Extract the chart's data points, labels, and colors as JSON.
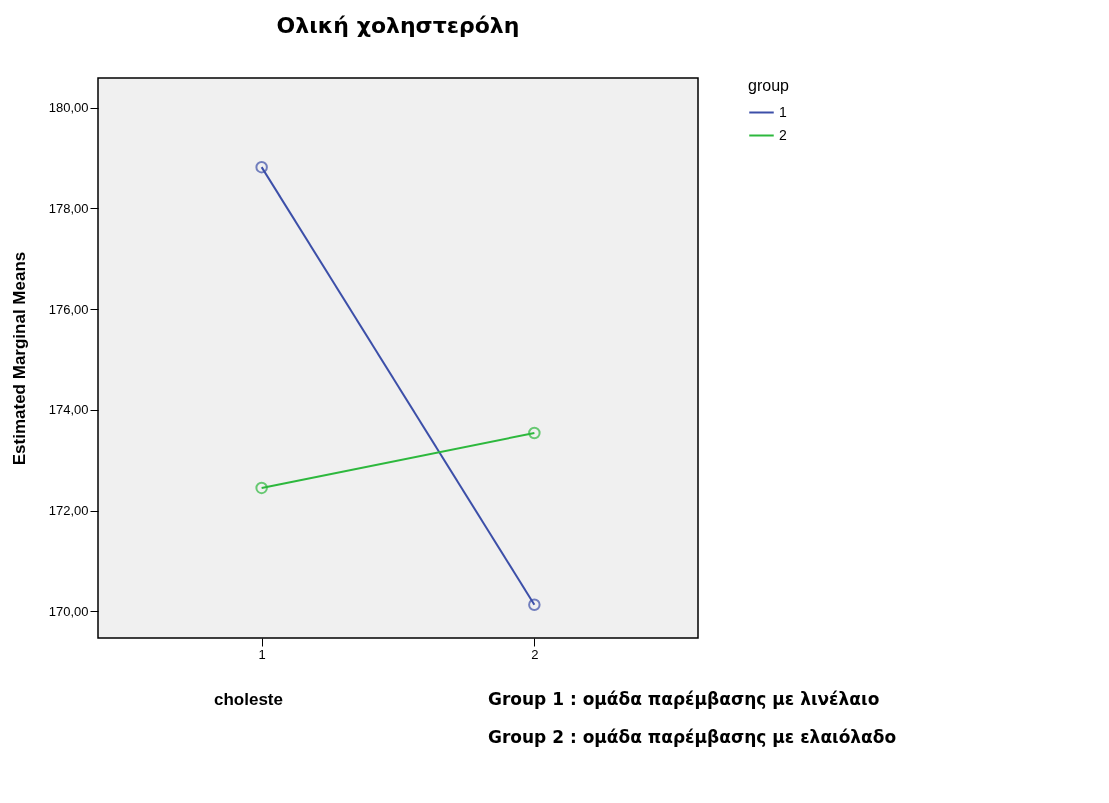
{
  "chart_data": {
    "type": "line",
    "title": "Ολική χοληστερόλη",
    "xlabel": "choleste",
    "ylabel": "Estimated Marginal Means",
    "legend_title": "group",
    "categories": [
      "1",
      "2"
    ],
    "series": [
      {
        "name": "1",
        "color": "#3c4fa8",
        "values": [
          178.82,
          170.13
        ]
      },
      {
        "name": "2",
        "color": "#2db83d",
        "values": [
          172.45,
          173.54
        ]
      }
    ],
    "ylim": [
      169.47,
      180.59
    ],
    "yticks": [
      {
        "value": 170,
        "label": "170,00"
      },
      {
        "value": 172,
        "label": "172,00"
      },
      {
        "value": 174,
        "label": "174,00"
      },
      {
        "value": 176,
        "label": "176,00"
      },
      {
        "value": 178,
        "label": "178,00"
      },
      {
        "value": 180,
        "label": "180,00"
      }
    ],
    "annotations": [
      "Group 1 :  ομάδα παρέμβασης με λινέλαιο",
      "Group 2 : ομάδα παρέμβασης με ελαιόλαδο"
    ],
    "marker": "circle",
    "line_style": "solid",
    "grid": false,
    "legend": "top right"
  }
}
